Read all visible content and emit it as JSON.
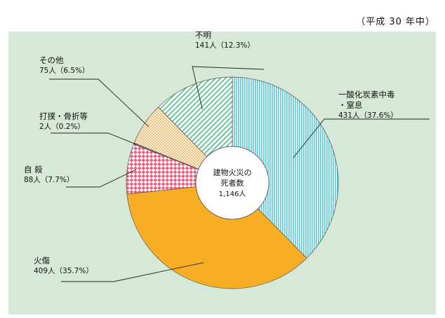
{
  "note": "（平成 30 年中）",
  "chart_data": {
    "type": "pie",
    "variant": "donut",
    "title": "",
    "center_label": {
      "line1": "建物火災の",
      "line2": "死者数",
      "line3": "1,146人"
    },
    "total": 1146,
    "unit": "人",
    "slices": [
      {
        "name": "一酸化炭素中毒",
        "name2": "・窒息",
        "value": 431,
        "value_text": "431人（37.6%）",
        "percent": 37.6,
        "pattern": "vertical-stripes",
        "color": "#5bc8d8"
      },
      {
        "name": "火傷",
        "value": 409,
        "value_text": "409人（35.7%）",
        "percent": 35.7,
        "pattern": "solid",
        "color": "#f8ae24"
      },
      {
        "name": "自 殺",
        "value": 88,
        "value_text": "88人（7.7%）",
        "percent": 7.7,
        "pattern": "checker",
        "color": "#ee5b7d"
      },
      {
        "name": "打撲・骨折等",
        "value": 2,
        "value_text": "2人（0.2%）",
        "percent": 0.2,
        "pattern": "solid",
        "color": "#5a5a5a"
      },
      {
        "name": "その他",
        "value": 75,
        "value_text": "75人（6.5%）",
        "percent": 6.5,
        "pattern": "dots",
        "color": "#f2c98a"
      },
      {
        "name": "不明",
        "value": 141,
        "value_text": "141人（12.3%）",
        "percent": 12.3,
        "pattern": "diagonal-stripes",
        "color": "#5cc08f"
      }
    ]
  }
}
